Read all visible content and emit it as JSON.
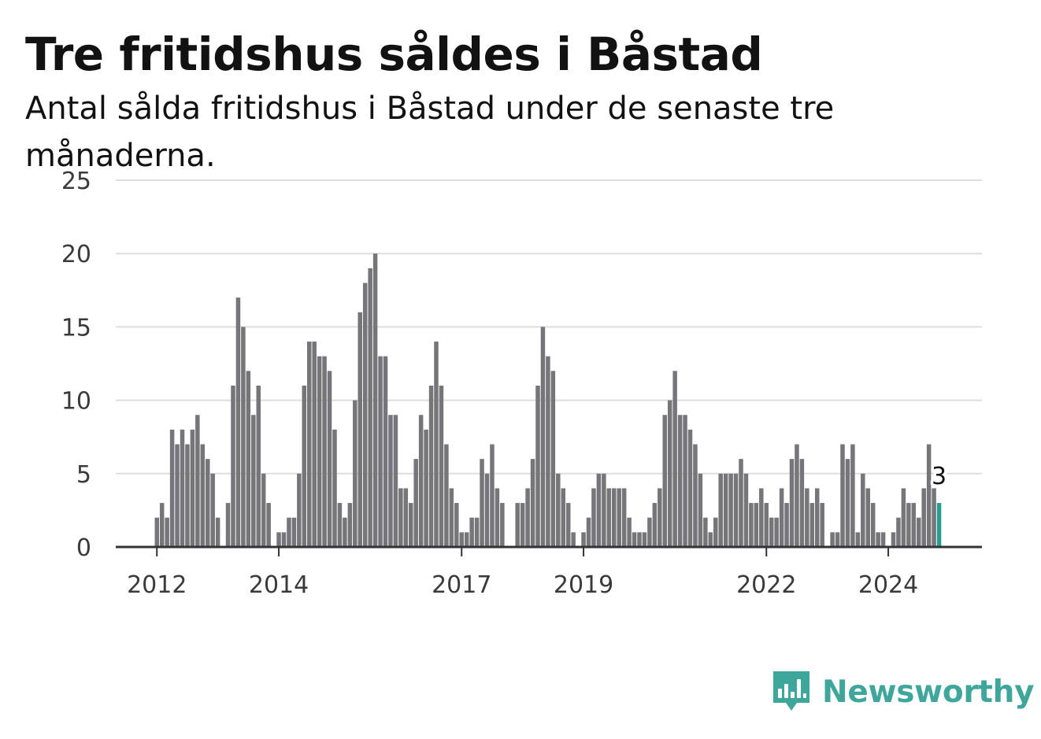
{
  "title": "Tre fritidshus såldes i Båstad",
  "subtitle": "Antal sålda fritidshus i Båstad under de senaste tre månaderna.",
  "brand": {
    "name": "Newsworthy",
    "icon": "newsworthy-logo-icon"
  },
  "colors": {
    "bar": "#75757a",
    "highlight": "#2a9d93",
    "grid": "#dedede",
    "axis": "#333333",
    "brand": "#3ea69b"
  },
  "chart_data": {
    "type": "bar",
    "title": "Tre fritidshus såldes i Båstad",
    "subtitle": "Antal sålda fritidshus i Båstad under de senaste tre månaderna.",
    "xlabel": "",
    "ylabel": "",
    "ylim": [
      0,
      25
    ],
    "y_ticks": [
      "0",
      "5",
      "10",
      "15",
      "20",
      "25"
    ],
    "x_ticks": [
      "2012",
      "2014",
      "2017",
      "2019",
      "2022",
      "2024"
    ],
    "grid": true,
    "highlight_label": "3",
    "values": [
      2,
      3,
      2,
      8,
      7,
      8,
      7,
      8,
      9,
      7,
      6,
      5,
      2,
      0,
      3,
      11,
      17,
      15,
      12,
      9,
      11,
      5,
      3,
      0,
      1,
      1,
      2,
      2,
      5,
      11,
      14,
      14,
      13,
      13,
      12,
      8,
      3,
      2,
      3,
      10,
      16,
      18,
      19,
      20,
      13,
      13,
      9,
      9,
      4,
      4,
      3,
      6,
      9,
      8,
      11,
      14,
      11,
      7,
      4,
      3,
      1,
      1,
      2,
      2,
      6,
      5,
      7,
      4,
      3,
      0,
      0,
      3,
      3,
      4,
      6,
      11,
      15,
      13,
      12,
      5,
      4,
      3,
      1,
      0,
      1,
      2,
      4,
      5,
      5,
      4,
      4,
      4,
      4,
      2,
      1,
      1,
      1,
      2,
      3,
      4,
      9,
      10,
      12,
      9,
      9,
      8,
      7,
      5,
      2,
      1,
      2,
      5,
      5,
      5,
      5,
      6,
      5,
      3,
      3,
      4,
      3,
      2,
      2,
      4,
      3,
      6,
      7,
      6,
      4,
      3,
      4,
      3,
      0,
      1,
      1,
      7,
      6,
      7,
      1,
      5,
      4,
      3,
      1,
      1,
      0,
      1,
      2,
      4,
      3,
      3,
      2,
      4,
      7,
      4,
      3
    ]
  }
}
